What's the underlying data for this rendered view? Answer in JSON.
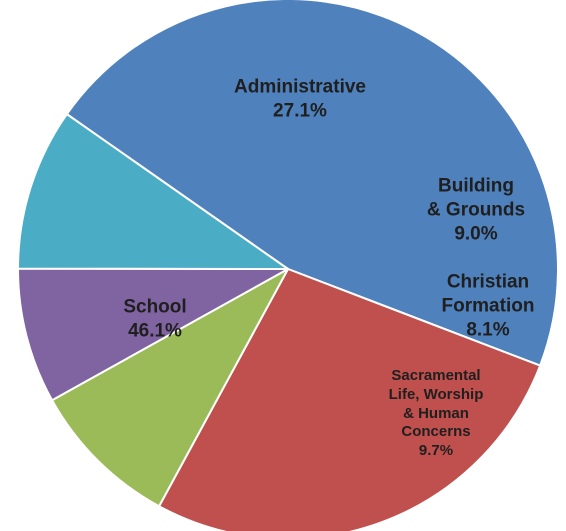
{
  "chart_data": {
    "type": "pie",
    "title": "",
    "slices": [
      {
        "label_lines": [
          "School"
        ],
        "value": 46.1,
        "value_label": "46.1%",
        "color": "#4f81bd",
        "label_color": "#1f1f1f"
      },
      {
        "label_lines": [
          "Administrative"
        ],
        "value": 27.1,
        "value_label": "27.1%",
        "color": "#c0504d",
        "label_color": "#1f1f1f"
      },
      {
        "label_lines": [
          "Building",
          "& Grounds"
        ],
        "value": 9.0,
        "value_label": "9.0%",
        "color": "#9bbb59",
        "label_color": "#1f1f1f"
      },
      {
        "label_lines": [
          "Christian",
          "Formation"
        ],
        "value": 8.1,
        "value_label": "8.1%",
        "color": "#8064a2",
        "label_color": "#1f1f1f"
      },
      {
        "label_lines": [
          "Sacramental",
          "Life, Worship",
          "& Human",
          "Concerns"
        ],
        "value": 9.7,
        "value_label": "9.7%",
        "color": "#4bacc6",
        "label_color": "#1f1f1f"
      }
    ],
    "legend": "none",
    "slice_border_color": "#ffffff"
  }
}
